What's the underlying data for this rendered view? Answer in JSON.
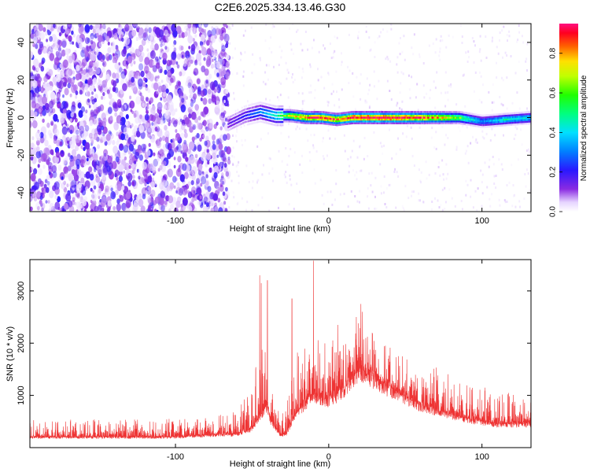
{
  "title": "C2E6.2025.334.13.46.G30",
  "colors": {
    "snr_line": "#ee3333",
    "noise_purple": "#7a1fe0",
    "background": "#ffffff"
  },
  "chart_data": [
    {
      "type": "heatmap",
      "xlabel": "Height of straight line (km)",
      "ylabel": "Frequency (Hz)",
      "xlim": [
        -195,
        132
      ],
      "ylim": [
        -50,
        50
      ],
      "x_ticks": [
        -100,
        0,
        100
      ],
      "x_tick_labels": [
        "-100",
        "0",
        "100"
      ],
      "y_ticks": [
        -40,
        -20,
        0,
        20,
        40
      ],
      "y_tick_labels": [
        "-40",
        "-20",
        "0",
        "20",
        "40"
      ],
      "colorbar": {
        "label": "Normalized spectral amplitude",
        "range": [
          0,
          0.95
        ],
        "ticks": [
          0.0,
          0.2,
          0.4,
          0.6,
          0.8
        ],
        "tick_labels": [
          "0.0",
          "0.2",
          "0.4",
          "0.6",
          "0.8"
        ],
        "colormap": "rainbow (white-purple-blue-cyan-green-yellow-red-magenta)"
      },
      "noise_region_x": [
        -195,
        -65
      ],
      "signal_track": {
        "frequency_hz": 0,
        "x_start": -66,
        "x_end": 132,
        "amplitude_profile": [
          {
            "x": -65,
            "amp": 0.15,
            "freq": -3
          },
          {
            "x": -55,
            "amp": 0.2,
            "freq": 1
          },
          {
            "x": -45,
            "amp": 0.3,
            "freq": 3
          },
          {
            "x": -35,
            "amp": 0.45,
            "freq": 1
          },
          {
            "x": -25,
            "amp": 0.7,
            "freq": 1
          },
          {
            "x": -15,
            "amp": 0.85,
            "freq": 0
          },
          {
            "x": -5,
            "amp": 0.9,
            "freq": 0
          },
          {
            "x": 5,
            "amp": 0.85,
            "freq": -1
          },
          {
            "x": 15,
            "amp": 0.95,
            "freq": 0
          },
          {
            "x": 30,
            "amp": 0.95,
            "freq": 0
          },
          {
            "x": 50,
            "amp": 0.92,
            "freq": 0
          },
          {
            "x": 70,
            "amp": 0.8,
            "freq": 0
          },
          {
            "x": 85,
            "amp": 0.6,
            "freq": 0
          },
          {
            "x": 100,
            "amp": 0.3,
            "freq": -2
          },
          {
            "x": 115,
            "amp": 0.45,
            "freq": -1
          },
          {
            "x": 132,
            "amp": 0.4,
            "freq": 0
          }
        ]
      }
    },
    {
      "type": "line",
      "xlabel": "Height of straight line (km)",
      "ylabel": "SNR (10 * v/v)",
      "xlim": [
        -195,
        132
      ],
      "ylim": [
        0,
        3600
      ],
      "x_ticks": [
        -100,
        0,
        100
      ],
      "x_tick_labels": [
        "-100",
        "0",
        "100"
      ],
      "y_ticks": [
        1000,
        2000,
        3000
      ],
      "y_tick_labels": [
        "1000",
        "2000",
        "3000"
      ],
      "envelope": [
        {
          "x": -195,
          "base": 200,
          "top": 550
        },
        {
          "x": -150,
          "base": 200,
          "top": 550
        },
        {
          "x": -100,
          "base": 200,
          "top": 550
        },
        {
          "x": -70,
          "base": 250,
          "top": 650
        },
        {
          "x": -60,
          "base": 250,
          "top": 800
        },
        {
          "x": -50,
          "base": 350,
          "top": 1100
        },
        {
          "x": -45,
          "base": 600,
          "top": 2300
        },
        {
          "x": -40,
          "base": 800,
          "top": 2800
        },
        {
          "x": -38,
          "base": 500,
          "top": 1500
        },
        {
          "x": -32,
          "base": 250,
          "top": 700
        },
        {
          "x": -28,
          "base": 250,
          "top": 900
        },
        {
          "x": -20,
          "base": 700,
          "top": 1900
        },
        {
          "x": -10,
          "base": 1000,
          "top": 2400
        },
        {
          "x": 0,
          "base": 900,
          "top": 2100
        },
        {
          "x": 10,
          "base": 1100,
          "top": 2000
        },
        {
          "x": 20,
          "base": 1500,
          "top": 2500
        },
        {
          "x": 35,
          "base": 1200,
          "top": 2000
        },
        {
          "x": 60,
          "base": 800,
          "top": 1700
        },
        {
          "x": 90,
          "base": 550,
          "top": 1300
        },
        {
          "x": 110,
          "base": 450,
          "top": 1100
        },
        {
          "x": 132,
          "base": 450,
          "top": 1000
        }
      ],
      "spikes": [
        {
          "x": -45,
          "y": 3300
        },
        {
          "x": -44,
          "y": 3150
        },
        {
          "x": -40,
          "y": 3200
        },
        {
          "x": -24,
          "y": 2850
        },
        {
          "x": -10,
          "y": 3580
        },
        {
          "x": 6,
          "y": 2350
        },
        {
          "x": 21,
          "y": 2750
        },
        {
          "x": 22,
          "y": 2600
        },
        {
          "x": 18,
          "y": 2500
        }
      ]
    }
  ]
}
